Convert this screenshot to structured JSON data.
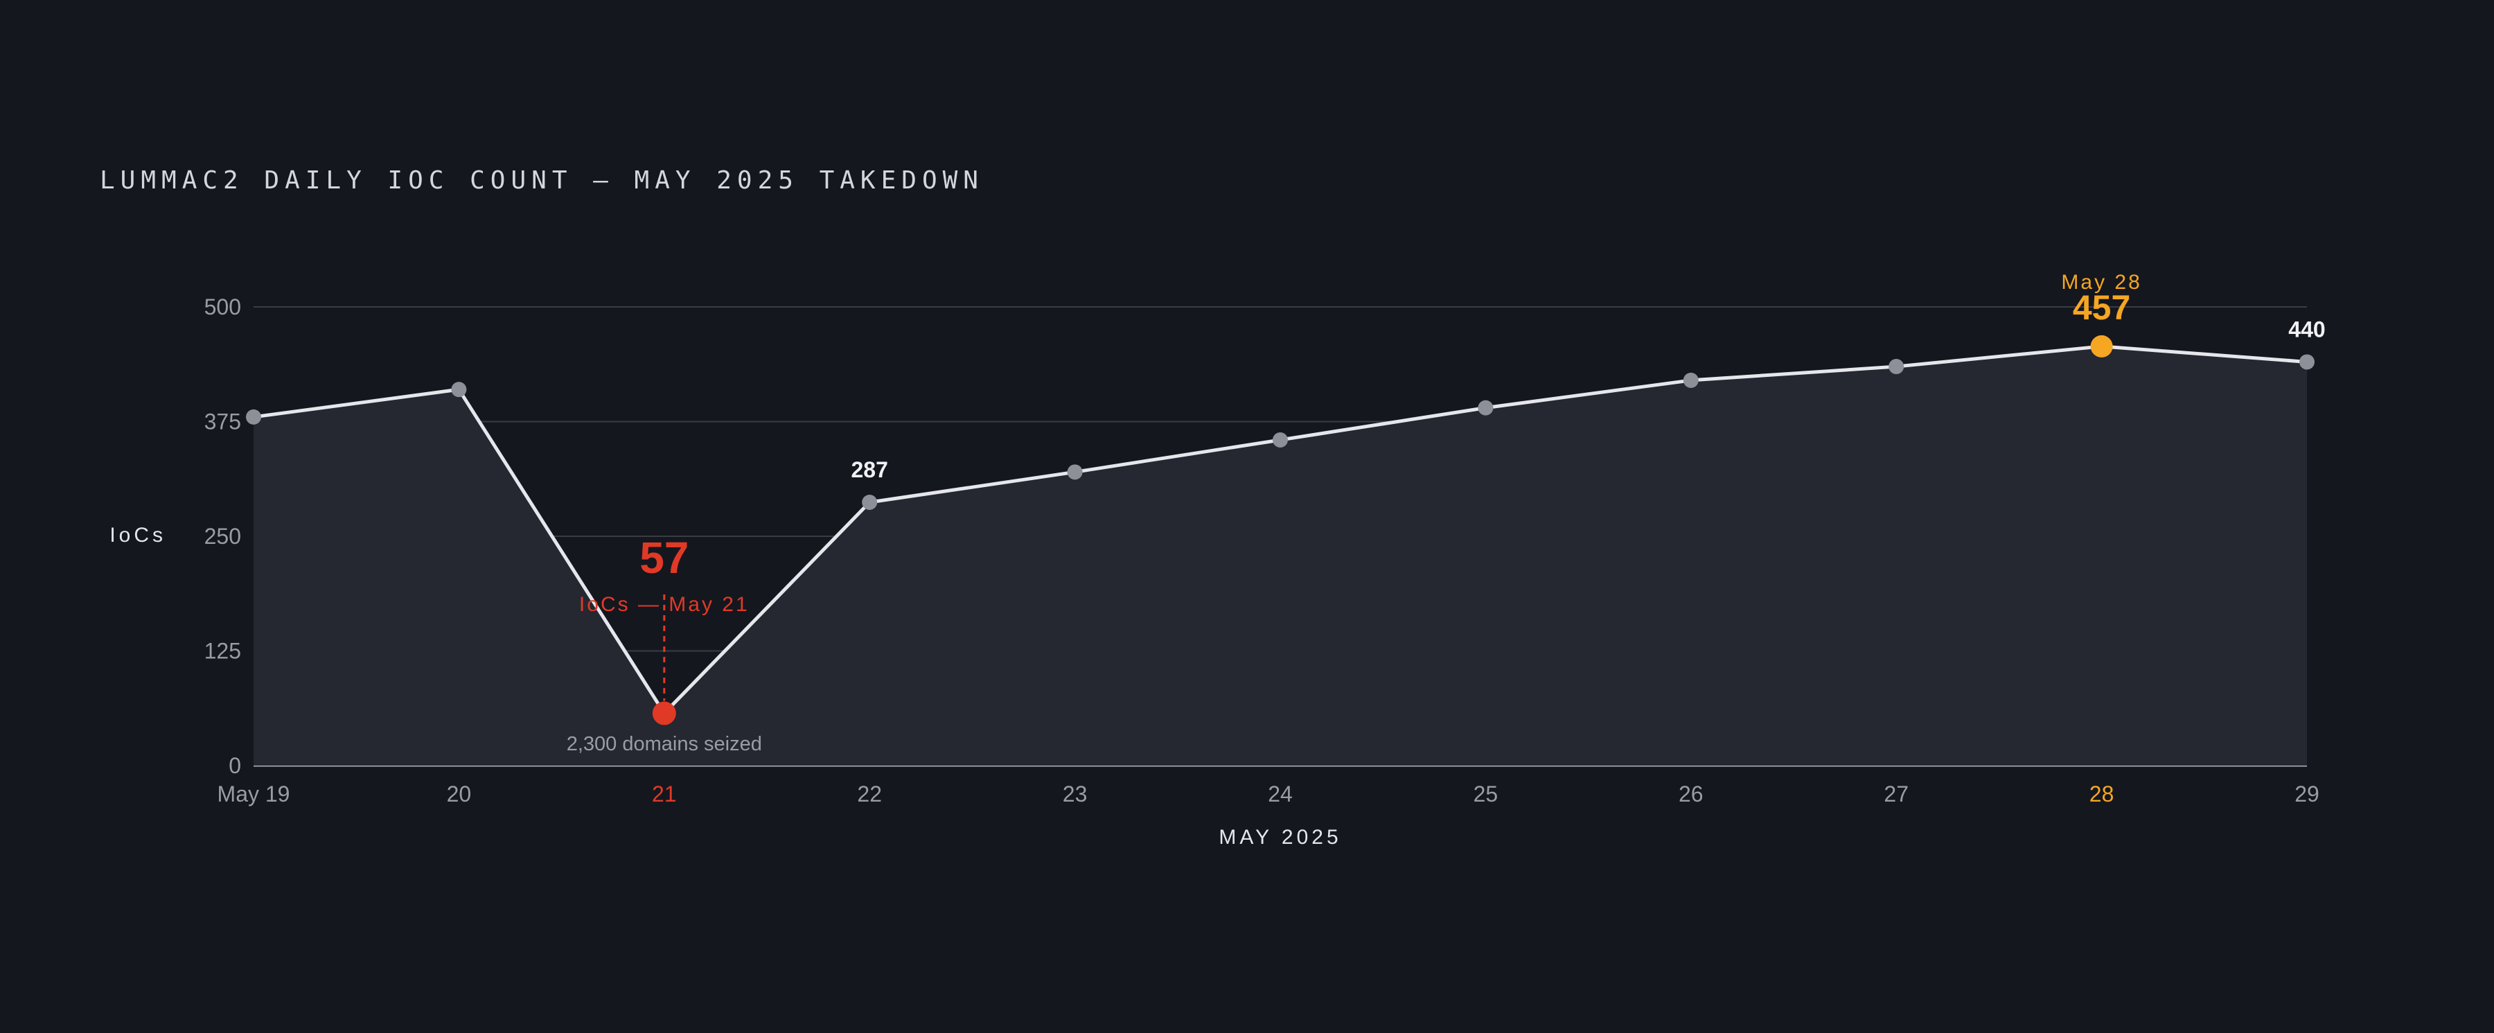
{
  "chart_data": {
    "type": "line",
    "title": "LUMMAC2 DAILY IOC COUNT — MAY 2025 TAKEDOWN",
    "xlabel": "MAY 2025",
    "ylabel": "IoCs",
    "ylim": [
      0,
      500
    ],
    "yticks": [
      0,
      125,
      250,
      375,
      500
    ],
    "grid": true,
    "categories": [
      "May 19",
      "20",
      "21",
      "22",
      "23",
      "24",
      "25",
      "26",
      "27",
      "28",
      "29"
    ],
    "values": [
      380,
      410,
      57,
      287,
      320,
      355,
      390,
      420,
      435,
      457,
      440
    ],
    "value_labels": [
      {
        "index": 3,
        "text": "287"
      },
      {
        "index": 10,
        "text": "440"
      }
    ],
    "annotations": {
      "low": {
        "index": 2,
        "value_text": "57",
        "caption": "IoCs — May 21",
        "note": "2,300 domains seized",
        "color": "#e03a26"
      },
      "peak": {
        "index": 9,
        "value_text": "457",
        "caption": "May 28",
        "color": "#f5a623"
      }
    },
    "colors": {
      "background": "#15171f",
      "line": "#e6e7ec",
      "area": "#252731",
      "marker": "#8e9099",
      "grid": "#3a3c46",
      "axis": "#b5b7c0"
    }
  }
}
